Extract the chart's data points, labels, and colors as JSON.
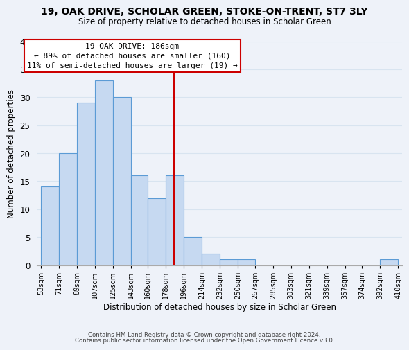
{
  "title": "19, OAK DRIVE, SCHOLAR GREEN, STOKE-ON-TRENT, ST7 3LY",
  "subtitle": "Size of property relative to detached houses in Scholar Green",
  "xlabel": "Distribution of detached houses by size in Scholar Green",
  "ylabel": "Number of detached properties",
  "bar_edges": [
    53,
    71,
    89,
    107,
    125,
    143,
    160,
    178,
    196,
    214,
    232,
    250,
    267,
    285,
    303,
    321,
    339,
    357,
    374,
    392,
    410
  ],
  "bar_heights": [
    14,
    20,
    29,
    33,
    30,
    16,
    12,
    16,
    5,
    2,
    1,
    1,
    0,
    0,
    0,
    0,
    0,
    0,
    0,
    1
  ],
  "bar_color": "#c6d9f1",
  "bar_edge_color": "#5b9bd5",
  "tick_labels": [
    "53sqm",
    "71sqm",
    "89sqm",
    "107sqm",
    "125sqm",
    "143sqm",
    "160sqm",
    "178sqm",
    "196sqm",
    "214sqm",
    "232sqm",
    "250sqm",
    "267sqm",
    "285sqm",
    "303sqm",
    "321sqm",
    "339sqm",
    "357sqm",
    "374sqm",
    "392sqm",
    "410sqm"
  ],
  "ylim": [
    0,
    40
  ],
  "yticks": [
    0,
    5,
    10,
    15,
    20,
    25,
    30,
    35,
    40
  ],
  "property_line_x": 186,
  "annotation_title": "19 OAK DRIVE: 186sqm",
  "annotation_line1": "← 89% of detached houses are smaller (160)",
  "annotation_line2": "11% of semi-detached houses are larger (19) →",
  "annotation_box_color": "#ffffff",
  "annotation_box_edge": "#cc0000",
  "footer_line1": "Contains HM Land Registry data © Crown copyright and database right 2024.",
  "footer_line2": "Contains public sector information licensed under the Open Government Licence v3.0.",
  "background_color": "#eef2f9",
  "grid_color": "#d8e4f0"
}
